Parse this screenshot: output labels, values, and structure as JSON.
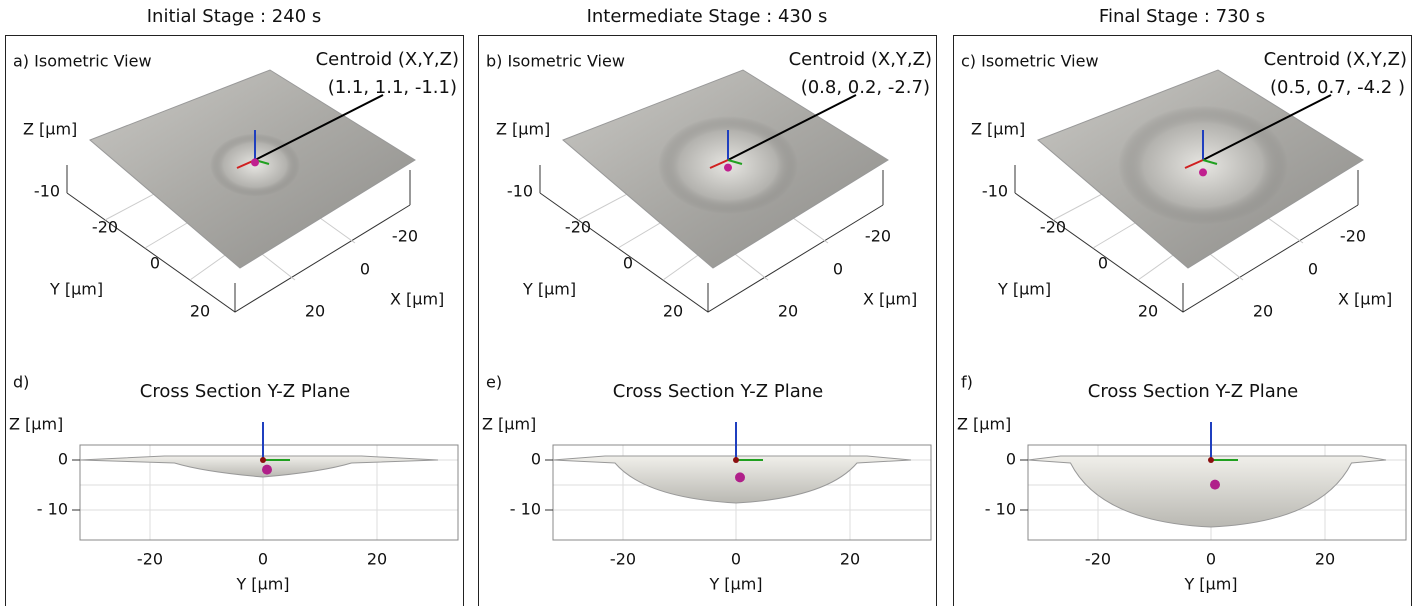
{
  "panels": [
    {
      "stage_title": "Initial Stage : 240 s",
      "iso": {
        "label": "a) Isometric View",
        "centroid_label": "Centroid (X,Y,Z)",
        "centroid_value": "(1.1, 1.1, -1.1)",
        "z_axis_label": "Z [µm]",
        "z_tick": "-10",
        "y_ticks": [
          "-20",
          "0",
          "20"
        ],
        "y_axis_label": "Y [µm]",
        "x_ticks": [
          "-20",
          "0",
          "20"
        ],
        "x_axis_label": "X [µm]"
      },
      "cross": {
        "label": "d)",
        "title": "Cross Section Y-Z Plane",
        "z_axis_label": "Z [µm]",
        "z_ticks": [
          "0",
          "- 10"
        ],
        "y_ticks": [
          "-20",
          "0",
          "20"
        ],
        "y_axis_label": "Y [µm]"
      }
    },
    {
      "stage_title": "Intermediate Stage : 430 s",
      "iso": {
        "label": "b) Isometric View",
        "centroid_label": "Centroid (X,Y,Z)",
        "centroid_value": "(0.8, 0.2, -2.7)",
        "z_axis_label": "Z [µm]",
        "z_tick": "-10",
        "y_ticks": [
          "-20",
          "0",
          "20"
        ],
        "y_axis_label": "Y [µm]",
        "x_ticks": [
          "-20",
          "0",
          "20"
        ],
        "x_axis_label": "X [µm]"
      },
      "cross": {
        "label": "e)",
        "title": "Cross Section Y-Z Plane",
        "z_axis_label": "Z [µm]",
        "z_ticks": [
          "0",
          "- 10"
        ],
        "y_ticks": [
          "-20",
          "0",
          "20"
        ],
        "y_axis_label": "Y [µm]"
      }
    },
    {
      "stage_title": "Final Stage : 730 s",
      "iso": {
        "label": "c) Isometric View",
        "centroid_label": "Centroid (X,Y,Z)",
        "centroid_value": "(0.5, 0.7, -4.2 )",
        "z_axis_label": "Z [µm]",
        "z_tick": "-10",
        "y_ticks": [
          "-20",
          "0",
          "20"
        ],
        "y_axis_label": "Y [µm]",
        "x_ticks": [
          "-20",
          "0",
          "20"
        ],
        "x_axis_label": "X [µm]"
      },
      "cross": {
        "label": "f)",
        "title": "Cross Section Y-Z Plane",
        "z_axis_label": "Z [µm]",
        "z_ticks": [
          "0",
          "- 10"
        ],
        "y_ticks": [
          "-20",
          "0",
          "20"
        ],
        "y_axis_label": "Y [µm]"
      }
    }
  ]
}
